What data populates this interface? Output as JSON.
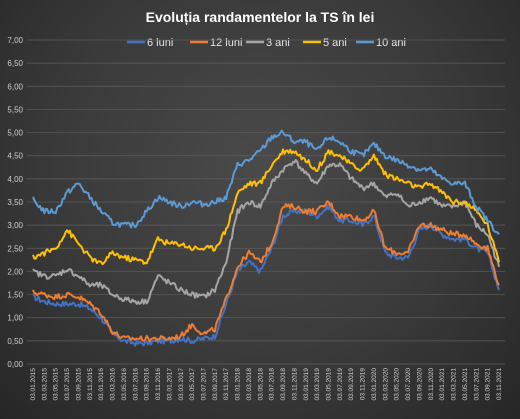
{
  "chart_data": {
    "type": "line",
    "title": "Evoluția  randamentelor  la TS în lei",
    "xlabel": "",
    "ylabel": "",
    "ylim": [
      0,
      7
    ],
    "y_ticks": [
      "0,00",
      "0,50",
      "1,00",
      "1,50",
      "2,00",
      "2,50",
      "3,00",
      "3,50",
      "4,00",
      "4,50",
      "5,00",
      "5,50",
      "6,00",
      "6,50",
      "7,00"
    ],
    "grid": true,
    "legend_position": "top",
    "x": [
      "03.01.2015",
      "03.03.2015",
      "03.05.2015",
      "03.07.2015",
      "03.09.2015",
      "03.11.2015",
      "03.01.2016",
      "03.03.2016",
      "03.05.2016",
      "03.07.2016",
      "03.09.2016",
      "03.11.2016",
      "03.01.2017",
      "03.03.2017",
      "03.05.2017",
      "03.07.2017",
      "03.09.2017",
      "03.11.2017",
      "03.01.2018",
      "03.03.2018",
      "03.05.2018",
      "03.07.2018",
      "03.09.2018",
      "03.11.2018",
      "03.01.2019",
      "03.03.2019",
      "03.05.2019",
      "03.07.2019",
      "03.09.2019",
      "03.11.2019",
      "03.01.2020",
      "03.03.2020",
      "03.05.2020",
      "03.07.2020",
      "03.09.2020",
      "03.11.2020",
      "03.01.2021",
      "03.03.2021",
      "03.05.2021",
      "03.07.2021",
      "03.09.2021",
      "03.11.2021"
    ],
    "series": [
      {
        "name": "6 luni",
        "color": "#4472c4",
        "values": [
          1.45,
          1.35,
          1.3,
          1.3,
          1.3,
          1.2,
          1.0,
          0.65,
          0.5,
          0.45,
          0.45,
          0.5,
          0.5,
          0.55,
          0.5,
          0.55,
          0.6,
          1.3,
          2.0,
          2.2,
          2.0,
          2.5,
          3.2,
          3.3,
          3.3,
          3.2,
          3.4,
          3.1,
          3.1,
          3.0,
          3.2,
          2.4,
          2.3,
          2.3,
          2.9,
          3.0,
          2.8,
          2.7,
          2.7,
          2.5,
          2.4,
          1.6
        ]
      },
      {
        "name": "12 luni",
        "color": "#ed7d31",
        "values": [
          1.55,
          1.5,
          1.45,
          1.5,
          1.45,
          1.3,
          1.1,
          0.7,
          0.55,
          0.55,
          0.55,
          0.55,
          0.55,
          0.6,
          0.85,
          0.65,
          0.75,
          1.4,
          2.1,
          2.4,
          2.2,
          2.6,
          3.4,
          3.4,
          3.3,
          3.3,
          3.5,
          3.2,
          3.2,
          3.1,
          3.3,
          2.5,
          2.4,
          2.4,
          3.0,
          3.0,
          2.9,
          2.8,
          2.8,
          2.6,
          2.5,
          1.7
        ]
      },
      {
        "name": "3 ani",
        "color": "#a5a5a5",
        "values": [
          2.0,
          1.9,
          1.9,
          2.05,
          1.9,
          1.7,
          1.7,
          1.5,
          1.4,
          1.35,
          1.35,
          1.9,
          1.75,
          1.6,
          1.5,
          1.45,
          1.6,
          2.2,
          3.3,
          3.5,
          3.4,
          3.9,
          4.2,
          4.4,
          4.1,
          3.9,
          4.3,
          4.3,
          4.0,
          3.8,
          3.9,
          3.6,
          3.7,
          3.4,
          3.5,
          3.6,
          3.4,
          3.4,
          3.5,
          3.0,
          2.8,
          2.1
        ]
      },
      {
        "name": "5 ani",
        "color": "#ffc000",
        "values": [
          2.3,
          2.4,
          2.5,
          2.9,
          2.6,
          2.3,
          2.15,
          2.4,
          2.3,
          2.25,
          2.2,
          2.7,
          2.6,
          2.6,
          2.5,
          2.5,
          2.5,
          2.9,
          3.7,
          3.9,
          3.9,
          4.3,
          4.6,
          4.6,
          4.4,
          4.2,
          4.6,
          4.5,
          4.3,
          4.2,
          4.5,
          4.1,
          4.0,
          3.9,
          3.8,
          3.9,
          3.7,
          3.5,
          3.5,
          3.3,
          3.0,
          2.2
        ]
      },
      {
        "name": "10 ani",
        "color": "#5b9bd5",
        "values": [
          3.55,
          3.3,
          3.3,
          3.7,
          3.9,
          3.6,
          3.3,
          3.05,
          3.0,
          3.0,
          3.3,
          3.6,
          3.5,
          3.4,
          3.5,
          3.45,
          3.5,
          3.6,
          4.3,
          4.4,
          4.6,
          4.9,
          5.0,
          4.8,
          4.8,
          4.6,
          4.9,
          4.8,
          4.6,
          4.5,
          4.75,
          4.5,
          4.4,
          4.3,
          4.2,
          4.2,
          4.0,
          3.9,
          3.9,
          3.4,
          3.1,
          2.8
        ]
      }
    ]
  }
}
